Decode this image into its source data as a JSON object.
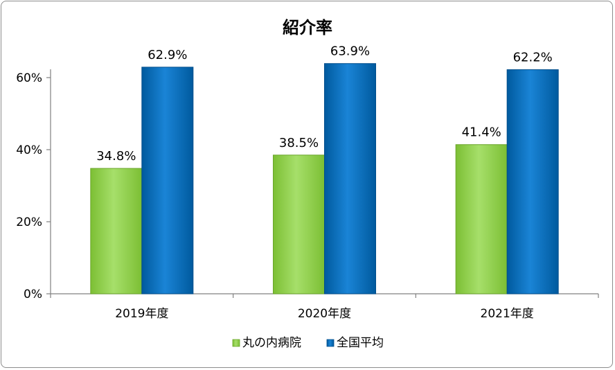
{
  "chart_data": {
    "type": "bar",
    "title": "紹介率",
    "categories": [
      "2019年度",
      "2020年度",
      "2021年度"
    ],
    "series": [
      {
        "name": "丸の内病院",
        "values": [
          34.8,
          38.5,
          41.4
        ],
        "labels": [
          "34.8%",
          "38.5%",
          "41.4%"
        ],
        "color": "#92d050"
      },
      {
        "name": "全国平均",
        "values": [
          62.9,
          63.9,
          62.2
        ],
        "labels": [
          "62.9%",
          "63.9%",
          "62.2%"
        ],
        "color": "#0070c0"
      }
    ],
    "ylim": [
      0,
      60
    ],
    "yticks": [
      {
        "value": 0,
        "label": "0%"
      },
      {
        "value": 20,
        "label": "20%"
      },
      {
        "value": 40,
        "label": "40%"
      },
      {
        "value": 60,
        "label": "60%"
      }
    ],
    "xlabel": "",
    "ylabel": "",
    "grid": false,
    "legend": "bottom-center"
  }
}
